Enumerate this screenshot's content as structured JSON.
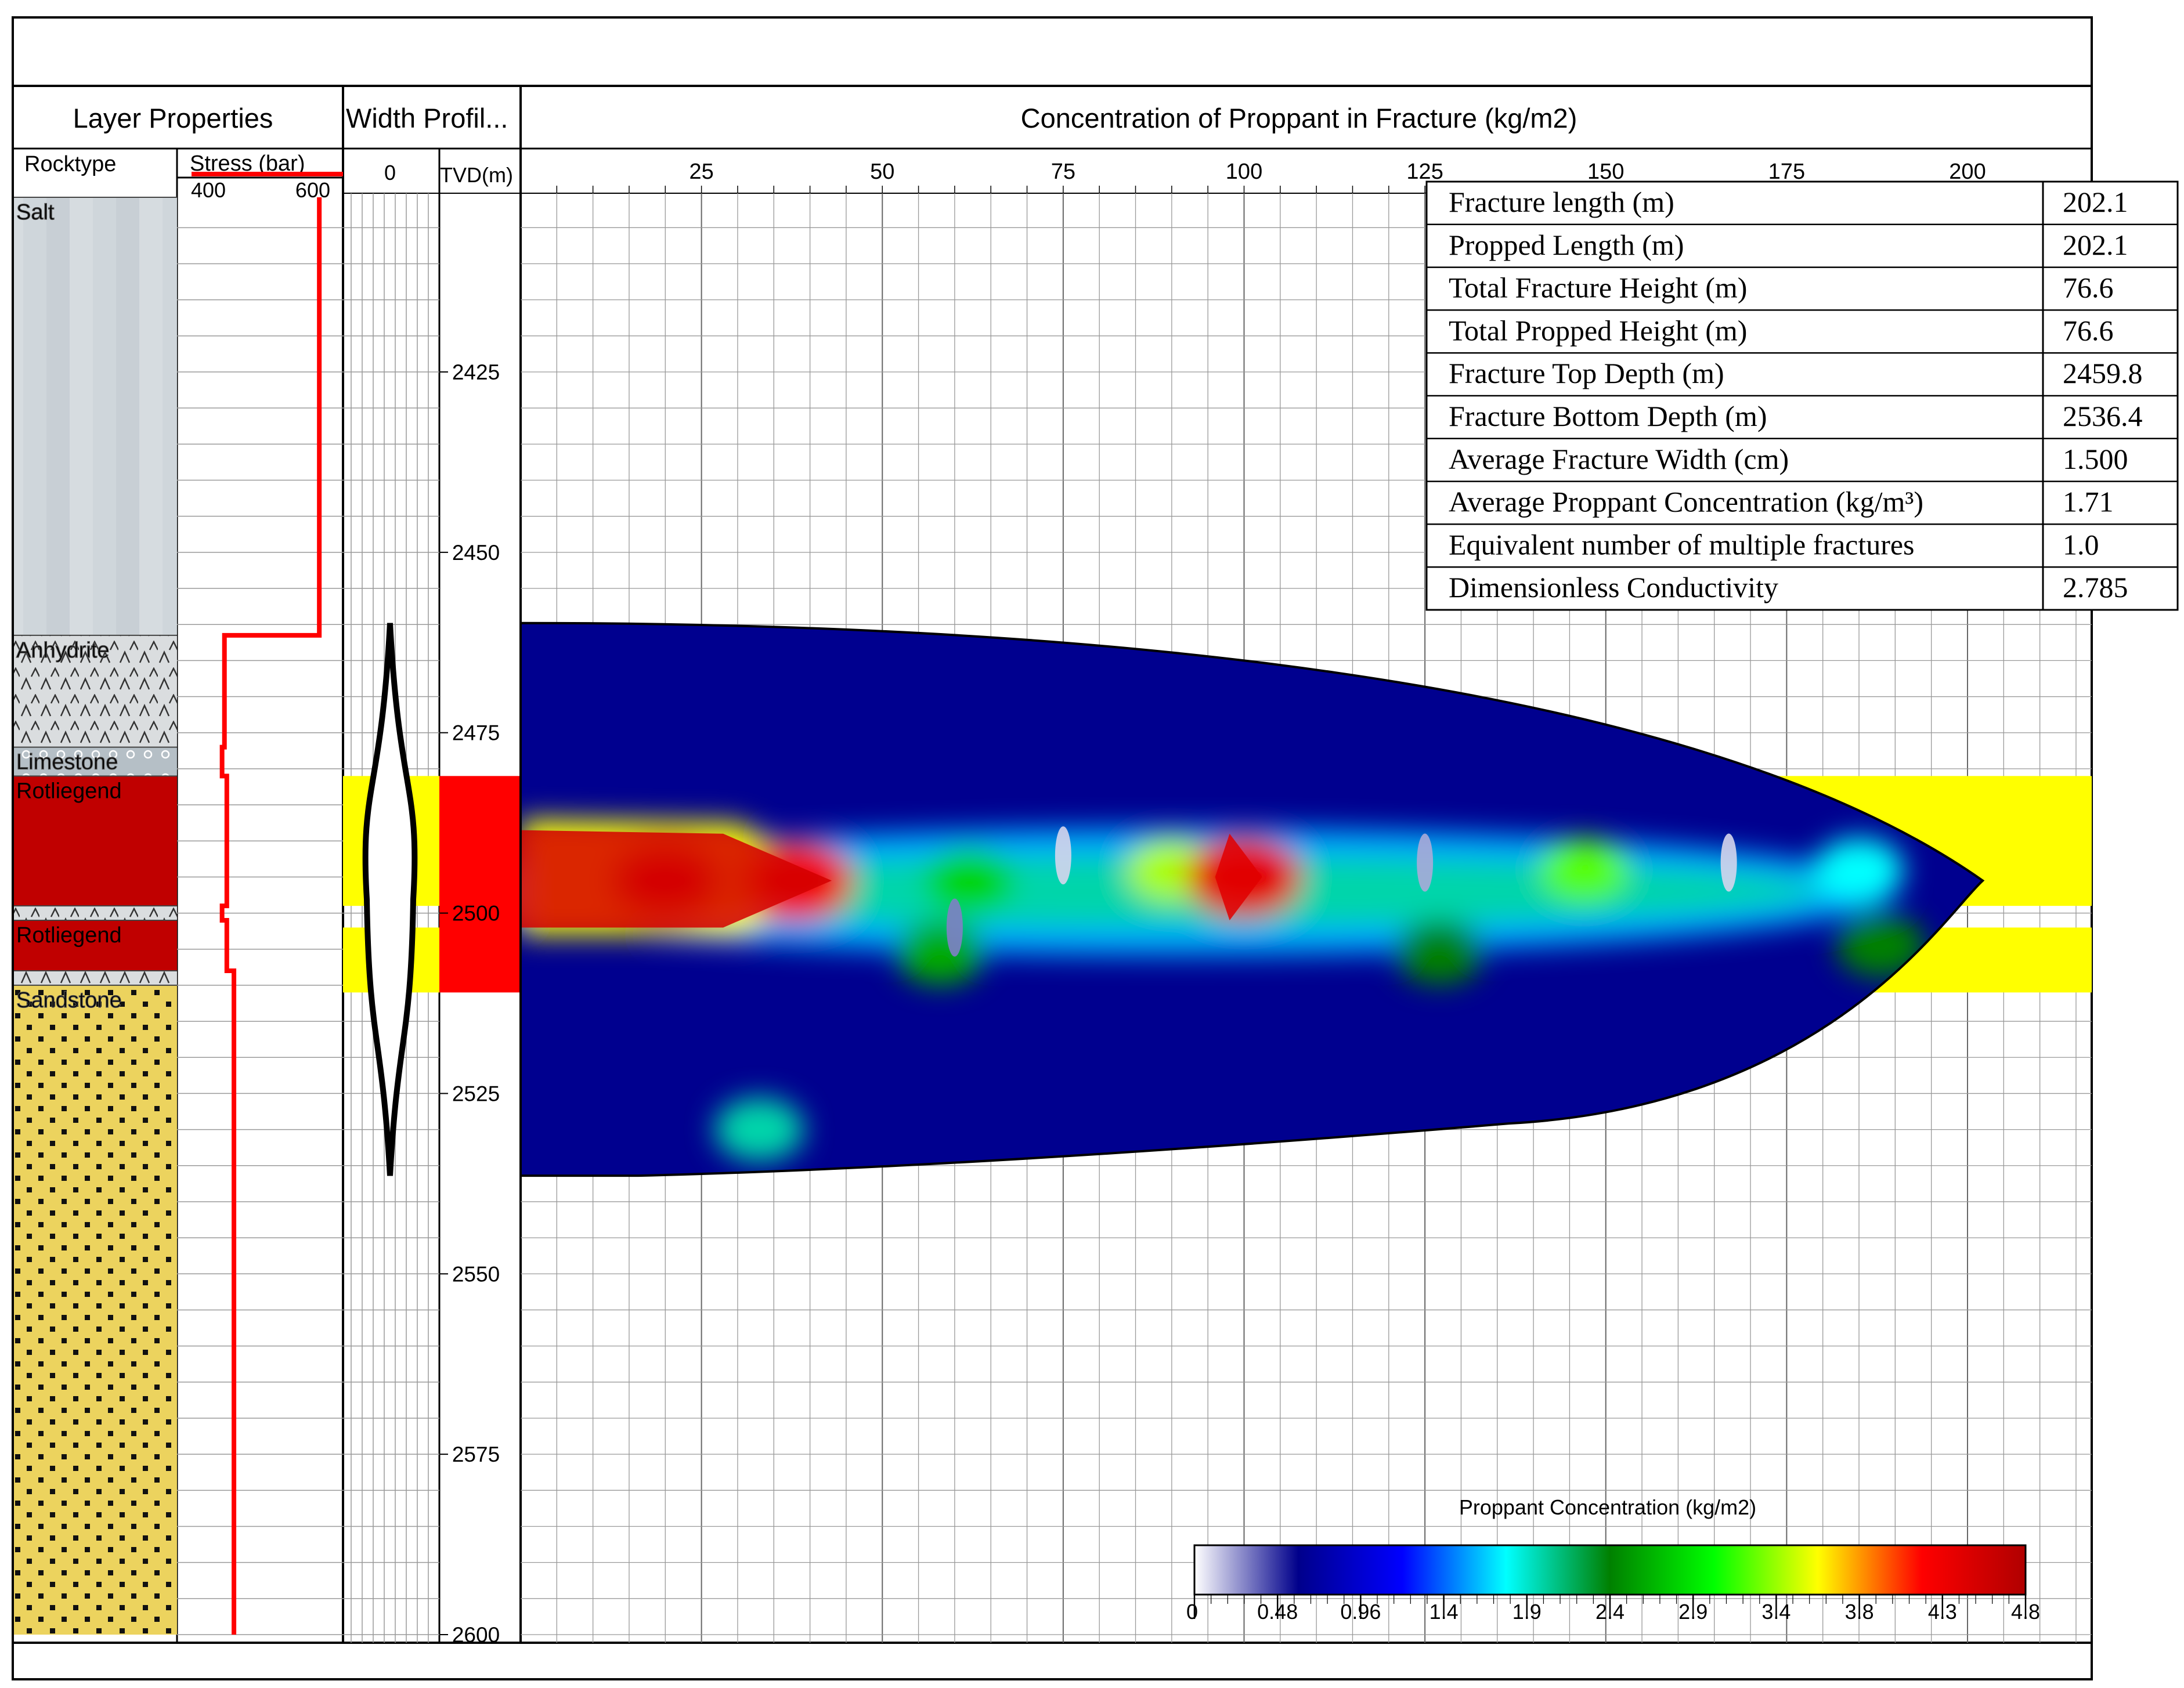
{
  "panels": {
    "layer_properties": "Layer Properties",
    "width_profile": "Width Profil...",
    "concentration": "Concentration of Proppant in Fracture (kg/m2)"
  },
  "columns": {
    "rocktype": "Rocktype",
    "stress": "Stress (bar)",
    "stress_ticks": [
      "400",
      "600"
    ],
    "width_tick": "0",
    "tvd": "TVD(m)"
  },
  "layers": [
    {
      "name": "Salt",
      "top": 2400,
      "bottom": 2461.5,
      "pattern": "salt",
      "color": "#cfd6db",
      "stress": 600
    },
    {
      "name": "Anhydrite",
      "top": 2461.5,
      "bottom": 2477,
      "pattern": "anhydrite",
      "color": "#d9dcde",
      "stress": 400
    },
    {
      "name": "Limestone",
      "top": 2477,
      "bottom": 2481,
      "pattern": "limestone",
      "color": "#b8c2c8",
      "stress": 395
    },
    {
      "name": "Rotliegend",
      "top": 2481,
      "bottom": 2499,
      "pattern": "solid",
      "color": "#c00000",
      "stress": 405
    },
    {
      "name": "",
      "top": 2499,
      "bottom": 2501,
      "pattern": "anhydrite",
      "color": "#d9dcde",
      "stress": 395
    },
    {
      "name": "Rotliegend",
      "top": 2501,
      "bottom": 2508,
      "pattern": "solid",
      "color": "#c00000",
      "stress": 405
    },
    {
      "name": "",
      "top": 2508,
      "bottom": 2510,
      "pattern": "anhydrite",
      "color": "#d9dcde",
      "stress": 420
    },
    {
      "name": "Sandstone",
      "top": 2510,
      "bottom": 2600,
      "pattern": "sandstone",
      "color": "#ecd35e",
      "stress": 420
    }
  ],
  "stress_range": [
    300,
    650
  ],
  "width_profile": {
    "top": 2459.8,
    "bottom": 2536.4,
    "max_half_width": 0.35
  },
  "colors": {
    "stress_line": "#ff0000",
    "target_zone": "#ffff00",
    "tvd_highlight": "#ff0000",
    "grid": "#808080"
  },
  "chart_data": {
    "type": "heatmap",
    "title": "Concentration of Proppant in Fracture (kg/m2)",
    "xlabel": "",
    "ylabel": "TVD(m)",
    "x_ticks": [
      "25",
      "50",
      "75",
      "100",
      "125",
      "150",
      "175",
      "200"
    ],
    "y_ticks": [
      "2425",
      "2450",
      "2475",
      "2500",
      "2525",
      "2550",
      "2575",
      "2600"
    ],
    "xlim": [
      0,
      217
    ],
    "ylim": [
      2400,
      2600
    ],
    "grid": true,
    "fracture_length": 202.1,
    "fracture_top": 2459.8,
    "fracture_bottom": 2536.4,
    "target_zones": [
      [
        2481,
        2499
      ],
      [
        2502,
        2511
      ]
    ],
    "hotspots": [
      {
        "x": 20,
        "y": 2495.5,
        "value": 4.5
      },
      {
        "x": 38,
        "y": 2495.5,
        "value": 4.3
      },
      {
        "x": 62,
        "y": 2495.5,
        "value": 2.8
      },
      {
        "x": 90,
        "y": 2494,
        "value": 3.4
      },
      {
        "x": 100,
        "y": 2495,
        "value": 4.4
      },
      {
        "x": 147,
        "y": 2494,
        "value": 3.2
      },
      {
        "x": 185,
        "y": 2494,
        "value": 1.8
      },
      {
        "x": 58,
        "y": 2505.5,
        "value": 2.6
      },
      {
        "x": 127,
        "y": 2505.5,
        "value": 2.4
      },
      {
        "x": 188,
        "y": 2504.5,
        "value": 2.4
      },
      {
        "x": 33,
        "y": 2530,
        "value": 2.0
      }
    ],
    "low_spots": [
      {
        "x": 75,
        "y": 2492,
        "value": 0.1
      },
      {
        "x": 125,
        "y": 2493,
        "value": 0.2
      },
      {
        "x": 167,
        "y": 2493,
        "value": 0.1
      },
      {
        "x": 60,
        "y": 2502,
        "value": 0.3
      }
    ],
    "colorbar": {
      "title": "Proppant Concentration (kg/m2)",
      "ticks": [
        "0",
        "0.48",
        "0.96",
        "1.4",
        "1.9",
        "2.4",
        "2.9",
        "3.4",
        "3.8",
        "4.3",
        "4.8"
      ],
      "range": [
        0,
        4.8
      ],
      "stops": [
        "#ffffff",
        "#00008b",
        "#0000ff",
        "#00ffff",
        "#008000",
        "#00ff00",
        "#ffff00",
        "#ff0000",
        "#b00000"
      ]
    }
  },
  "summary": {
    "rows": [
      {
        "label": "Fracture length (m)",
        "value": "202.1"
      },
      {
        "label": "Propped Length (m)",
        "value": "202.1"
      },
      {
        "label": "Total Fracture Height (m)",
        "value": "76.6"
      },
      {
        "label": "Total Propped Height (m)",
        "value": "76.6"
      },
      {
        "label": "Fracture Top Depth (m)",
        "value": "2459.8"
      },
      {
        "label": "Fracture Bottom Depth (m)",
        "value": "2536.4"
      },
      {
        "label": "Average Fracture Width (cm)",
        "value": "1.500"
      },
      {
        "label": "Average Proppant Concentration (kg/m³)",
        "value": "1.71"
      },
      {
        "label": "Equivalent number of multiple fractures",
        "value": "1.0"
      },
      {
        "label": "Dimensionless Conductivity",
        "value": "2.785"
      }
    ]
  }
}
